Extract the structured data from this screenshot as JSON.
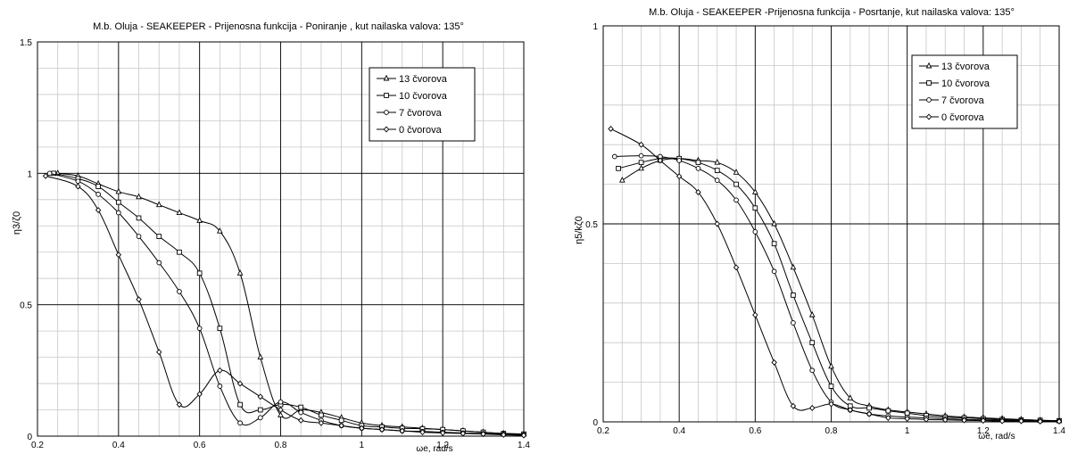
{
  "chart_data": [
    {
      "type": "line",
      "title": "M.b. Oluja -  SEAKEEPER - Prijenosna funkcija -  Poniranje , kut nailaska valova: 135°",
      "ylabel": "η3/ζ0",
      "xlabel": "ωe, rad/s",
      "xlim": [
        0.2,
        1.4
      ],
      "ylim": [
        0,
        1.5
      ],
      "x_ticks": [
        "0.2",
        "0.4",
        "0.6",
        "0.8",
        "1",
        "1.2",
        "1.4"
      ],
      "y_ticks": [
        "0",
        "0.5",
        "1",
        "1.5"
      ],
      "grid": true,
      "legend_position": "top-right",
      "series": [
        {
          "name": "13 čvorova",
          "marker": "triangle",
          "x": [
            0.25,
            0.3,
            0.35,
            0.4,
            0.45,
            0.5,
            0.55,
            0.6,
            0.65,
            0.7,
            0.75,
            0.8,
            0.85,
            0.9,
            0.95,
            1.0,
            1.05,
            1.1,
            1.15,
            1.2,
            1.25,
            1.3,
            1.35,
            1.4
          ],
          "y": [
            1.0,
            0.99,
            0.96,
            0.93,
            0.91,
            0.88,
            0.85,
            0.82,
            0.78,
            0.62,
            0.3,
            0.08,
            0.1,
            0.09,
            0.07,
            0.05,
            0.04,
            0.035,
            0.03,
            0.025,
            0.02,
            0.015,
            0.01,
            0.008
          ]
        },
        {
          "name": "10 čvorova",
          "marker": "square",
          "x": [
            0.24,
            0.3,
            0.35,
            0.4,
            0.45,
            0.5,
            0.55,
            0.6,
            0.65,
            0.7,
            0.75,
            0.8,
            0.85,
            0.9,
            0.95,
            1.0,
            1.05,
            1.1,
            1.15,
            1.2,
            1.25,
            1.3,
            1.35,
            1.4
          ],
          "y": [
            1.0,
            0.98,
            0.95,
            0.89,
            0.83,
            0.76,
            0.7,
            0.62,
            0.41,
            0.12,
            0.1,
            0.12,
            0.11,
            0.08,
            0.06,
            0.04,
            0.035,
            0.03,
            0.028,
            0.025,
            0.02,
            0.015,
            0.01,
            0.008
          ]
        },
        {
          "name": "7 čvorova",
          "marker": "circle",
          "x": [
            0.23,
            0.3,
            0.35,
            0.4,
            0.45,
            0.5,
            0.55,
            0.6,
            0.65,
            0.7,
            0.75,
            0.8,
            0.85,
            0.9,
            0.95,
            1.0,
            1.05,
            1.1,
            1.15,
            1.2,
            1.25,
            1.3,
            1.35,
            1.4
          ],
          "y": [
            1.0,
            0.97,
            0.92,
            0.85,
            0.76,
            0.66,
            0.55,
            0.41,
            0.19,
            0.05,
            0.07,
            0.13,
            0.09,
            0.06,
            0.04,
            0.03,
            0.025,
            0.02,
            0.018,
            0.015,
            0.012,
            0.01,
            0.008,
            0.005
          ]
        },
        {
          "name": "0 čvorova",
          "marker": "diamond",
          "x": [
            0.22,
            0.3,
            0.35,
            0.4,
            0.45,
            0.5,
            0.55,
            0.6,
            0.65,
            0.7,
            0.75,
            0.8,
            0.85,
            0.9,
            0.95,
            1.0,
            1.05,
            1.1,
            1.15,
            1.2,
            1.25,
            1.3,
            1.35,
            1.4
          ],
          "y": [
            0.99,
            0.95,
            0.86,
            0.69,
            0.52,
            0.32,
            0.12,
            0.16,
            0.25,
            0.2,
            0.15,
            0.1,
            0.06,
            0.05,
            0.04,
            0.03,
            0.025,
            0.02,
            0.015,
            0.012,
            0.01,
            0.008,
            0.005,
            0.003
          ]
        }
      ]
    },
    {
      "type": "line",
      "title": "M.b. Oluja - SEAKEEPER -Prijenosna funkcija -  Posrtanje, kut nailaska valova: 135°",
      "ylabel": "η5/kζ0",
      "xlabel": "ωe, rad/s",
      "xlim": [
        0.2,
        1.4
      ],
      "ylim": [
        0,
        1
      ],
      "x_ticks": [
        "0.2",
        "0.4",
        "0.6",
        "0.8",
        "1",
        "1.2",
        "1.4"
      ],
      "y_ticks": [
        "0",
        "0.5",
        "1"
      ],
      "grid": true,
      "legend_position": "top-right",
      "series": [
        {
          "name": "13 čvorova",
          "marker": "triangle",
          "x": [
            0.25,
            0.3,
            0.35,
            0.4,
            0.45,
            0.5,
            0.55,
            0.6,
            0.65,
            0.7,
            0.75,
            0.8,
            0.85,
            0.9,
            0.95,
            1.0,
            1.05,
            1.1,
            1.15,
            1.2,
            1.25,
            1.3,
            1.35,
            1.4
          ],
          "y": [
            0.61,
            0.64,
            0.66,
            0.665,
            0.66,
            0.655,
            0.63,
            0.58,
            0.5,
            0.39,
            0.27,
            0.14,
            0.06,
            0.04,
            0.03,
            0.025,
            0.02,
            0.015,
            0.012,
            0.01,
            0.008,
            0.006,
            0.004,
            0.003
          ]
        },
        {
          "name": "10 čvorova",
          "marker": "square",
          "x": [
            0.24,
            0.3,
            0.35,
            0.4,
            0.45,
            0.5,
            0.55,
            0.6,
            0.65,
            0.7,
            0.75,
            0.8,
            0.85,
            0.9,
            0.95,
            1.0,
            1.05,
            1.1,
            1.15,
            1.2,
            1.25,
            1.3,
            1.35,
            1.4
          ],
          "y": [
            0.64,
            0.655,
            0.665,
            0.665,
            0.655,
            0.635,
            0.6,
            0.54,
            0.45,
            0.32,
            0.2,
            0.09,
            0.04,
            0.035,
            0.028,
            0.022,
            0.016,
            0.012,
            0.01,
            0.008,
            0.006,
            0.005,
            0.004,
            0.003
          ]
        },
        {
          "name": "7 čvorova",
          "marker": "circle",
          "x": [
            0.23,
            0.3,
            0.35,
            0.4,
            0.45,
            0.5,
            0.55,
            0.6,
            0.65,
            0.7,
            0.75,
            0.8,
            0.85,
            0.9,
            0.95,
            1.0,
            1.05,
            1.1,
            1.15,
            1.2,
            1.25,
            1.3,
            1.35,
            1.4
          ],
          "y": [
            0.67,
            0.672,
            0.67,
            0.66,
            0.64,
            0.61,
            0.56,
            0.48,
            0.38,
            0.25,
            0.13,
            0.05,
            0.03,
            0.02,
            0.015,
            0.012,
            0.01,
            0.008,
            0.006,
            0.005,
            0.004,
            0.003,
            0.002,
            0.002
          ]
        },
        {
          "name": "0 čvorova",
          "marker": "diamond",
          "x": [
            0.22,
            0.3,
            0.35,
            0.4,
            0.45,
            0.5,
            0.55,
            0.6,
            0.65,
            0.7,
            0.75,
            0.8,
            0.85,
            0.9,
            0.95,
            1.0,
            1.05,
            1.1,
            1.15,
            1.2,
            1.25,
            1.3,
            1.35,
            1.4
          ],
          "y": [
            0.74,
            0.7,
            0.66,
            0.62,
            0.58,
            0.5,
            0.39,
            0.27,
            0.15,
            0.04,
            0.035,
            0.045,
            0.03,
            0.02,
            0.01,
            0.008,
            0.006,
            0.005,
            0.004,
            0.003,
            0.002,
            0.002,
            0.001,
            0.001
          ]
        }
      ]
    }
  ]
}
